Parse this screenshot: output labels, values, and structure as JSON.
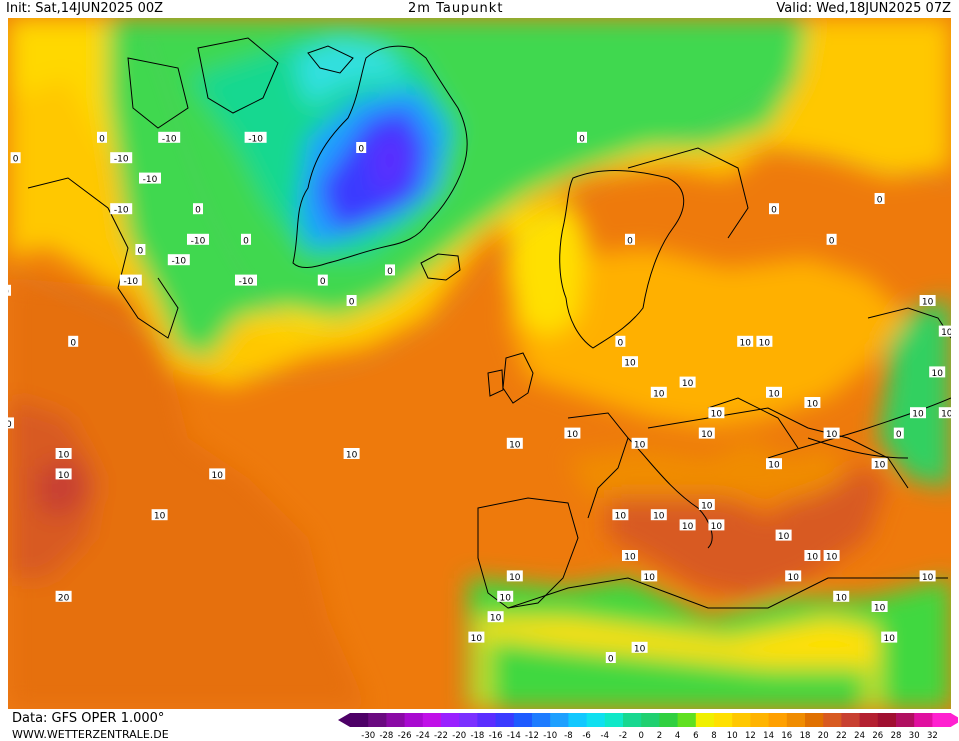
{
  "header": {
    "init": "Init: Sat,14JUN2025 00Z",
    "title": "2m Taupunkt",
    "valid": "Valid: Wed,18JUN2025 07Z"
  },
  "footer": {
    "source": "Data: GFS OPER 1.000°",
    "site": "WWW.WETTERZENTRALE.DE"
  },
  "legend": {
    "ticks": [
      "-30",
      "-28",
      "-26",
      "-24",
      "-22",
      "-20",
      "-18",
      "-16",
      "-14",
      "-12",
      "-10",
      "-8",
      "-6",
      "-4",
      "-2",
      "0",
      "2",
      "4",
      "6",
      "8",
      "10",
      "12",
      "14",
      "16",
      "18",
      "20",
      "22",
      "24",
      "26",
      "28",
      "30",
      "32"
    ],
    "colors": [
      "#4d0066",
      "#6a0a80",
      "#8a0aa5",
      "#a80ad0",
      "#c010e8",
      "#9a20ff",
      "#7a30ff",
      "#5a2dff",
      "#3a3aff",
      "#1e5aff",
      "#1e7cff",
      "#1ea0ff",
      "#12c8ff",
      "#10e0f0",
      "#10e8c8",
      "#18d890",
      "#20d070",
      "#30d040",
      "#60e020",
      "#f0f000",
      "#ffe000",
      "#ffc800",
      "#ffb400",
      "#ffa000",
      "#f08c00",
      "#e07000",
      "#d85a20",
      "#c84030",
      "#b42030",
      "#a01030",
      "#b01060",
      "#e010a0",
      "#ff20d0"
    ]
  },
  "map": {
    "contour_labels": [
      {
        "text": "0",
        "lon": -49,
        "lat": 77
      },
      {
        "text": "0",
        "lon": -40,
        "lat": 79
      },
      {
        "text": "0",
        "lon": -13,
        "lat": 78
      },
      {
        "text": "0",
        "lon": 10,
        "lat": 79
      },
      {
        "text": "0",
        "lon": -30,
        "lat": 72
      },
      {
        "text": "0",
        "lon": -25,
        "lat": 69
      },
      {
        "text": "0",
        "lon": -36,
        "lat": 68
      },
      {
        "text": "0",
        "lon": -50,
        "lat": 64
      },
      {
        "text": "0",
        "lon": -43,
        "lat": 59
      },
      {
        "text": "0",
        "lon": -17,
        "lat": 65
      },
      {
        "text": "0",
        "lon": -14,
        "lat": 63
      },
      {
        "text": "0",
        "lon": -10,
        "lat": 66
      },
      {
        "text": "0",
        "lon": 15,
        "lat": 69
      },
      {
        "text": "0",
        "lon": 30,
        "lat": 72
      },
      {
        "text": "0",
        "lon": 41,
        "lat": 73
      },
      {
        "text": "0",
        "lon": 36,
        "lat": 69
      },
      {
        "text": "0",
        "lon": 14,
        "lat": 59
      },
      {
        "text": "0",
        "lon": 43,
        "lat": 50
      },
      {
        "text": "0",
        "lon": 13,
        "lat": 28
      },
      {
        "text": "-10",
        "lon": -24,
        "lat": 79
      },
      {
        "text": "-10",
        "lon": -33,
        "lat": 79
      },
      {
        "text": "-10",
        "lon": -38,
        "lat": 77
      },
      {
        "text": "-10",
        "lon": -35,
        "lat": 75
      },
      {
        "text": "-10",
        "lon": -38,
        "lat": 72
      },
      {
        "text": "-10",
        "lon": -30,
        "lat": 69
      },
      {
        "text": "-10",
        "lon": -32,
        "lat": 67
      },
      {
        "text": "-10",
        "lon": -37,
        "lat": 65
      },
      {
        "text": "-10",
        "lon": -25,
        "lat": 65
      },
      {
        "text": "10",
        "lon": -62,
        "lat": 73
      },
      {
        "text": "10",
        "lon": -58,
        "lat": 71
      },
      {
        "text": "10",
        "lon": -62,
        "lat": 69
      },
      {
        "text": "10",
        "lon": -55,
        "lat": 65
      },
      {
        "text": "10",
        "lon": -50,
        "lat": 51
      },
      {
        "text": "10",
        "lon": -44,
        "lat": 48
      },
      {
        "text": "10",
        "lon": -44,
        "lat": 46
      },
      {
        "text": "10",
        "lon": -28,
        "lat": 46
      },
      {
        "text": "10",
        "lon": -34,
        "lat": 42
      },
      {
        "text": "10",
        "lon": -14,
        "lat": 48
      },
      {
        "text": "10",
        "lon": 3,
        "lat": 49
      },
      {
        "text": "10",
        "lon": 9,
        "lat": 50
      },
      {
        "text": "10",
        "lon": 16,
        "lat": 49
      },
      {
        "text": "10",
        "lon": 18,
        "lat": 54
      },
      {
        "text": "10",
        "lon": 15,
        "lat": 57
      },
      {
        "text": "10",
        "lon": 21,
        "lat": 55
      },
      {
        "text": "10",
        "lon": 24,
        "lat": 52
      },
      {
        "text": "10",
        "lon": 23,
        "lat": 50
      },
      {
        "text": "10",
        "lon": 27,
        "lat": 59
      },
      {
        "text": "10",
        "lon": 29,
        "lat": 59
      },
      {
        "text": "10",
        "lon": 30,
        "lat": 54
      },
      {
        "text": "10",
        "lon": 34,
        "lat": 53
      },
      {
        "text": "10",
        "lon": 30,
        "lat": 47
      },
      {
        "text": "10",
        "lon": 36,
        "lat": 50
      },
      {
        "text": "10",
        "lon": 41,
        "lat": 47
      },
      {
        "text": "10",
        "lon": 45,
        "lat": 52
      },
      {
        "text": "10",
        "lon": 48,
        "lat": 52
      },
      {
        "text": "10",
        "lon": 46,
        "lat": 63
      },
      {
        "text": "10",
        "lon": 48,
        "lat": 60
      },
      {
        "text": "10",
        "lon": 50,
        "lat": 58
      },
      {
        "text": "10",
        "lon": 47,
        "lat": 56
      },
      {
        "text": "10",
        "lon": 53,
        "lat": 72
      },
      {
        "text": "10",
        "lon": 23,
        "lat": 43
      },
      {
        "text": "10",
        "lon": 24,
        "lat": 41
      },
      {
        "text": "10",
        "lon": 21,
        "lat": 41
      },
      {
        "text": "10",
        "lon": 18,
        "lat": 42
      },
      {
        "text": "10",
        "lon": 14,
        "lat": 42
      },
      {
        "text": "10",
        "lon": 15,
        "lat": 38
      },
      {
        "text": "10",
        "lon": 17,
        "lat": 36
      },
      {
        "text": "10",
        "lon": 31,
        "lat": 40
      },
      {
        "text": "10",
        "lon": 34,
        "lat": 38
      },
      {
        "text": "10",
        "lon": 36,
        "lat": 38
      },
      {
        "text": "10",
        "lon": 32,
        "lat": 36
      },
      {
        "text": "10",
        "lon": 37,
        "lat": 34
      },
      {
        "text": "10",
        "lon": 41,
        "lat": 33
      },
      {
        "text": "10",
        "lon": 46,
        "lat": 36
      },
      {
        "text": "10",
        "lon": 3,
        "lat": 36
      },
      {
        "text": "10",
        "lon": 2,
        "lat": 34
      },
      {
        "text": "10",
        "lon": 1,
        "lat": 32
      },
      {
        "text": "10",
        "lon": -1,
        "lat": 30
      },
      {
        "text": "10",
        "lon": 16,
        "lat": 29
      },
      {
        "text": "10",
        "lon": 42,
        "lat": 30
      },
      {
        "text": "10",
        "lon": 50,
        "lat": 33
      },
      {
        "text": "20",
        "lon": -64,
        "lat": 43
      },
      {
        "text": "20",
        "lon": -44,
        "lat": 34
      }
    ]
  }
}
